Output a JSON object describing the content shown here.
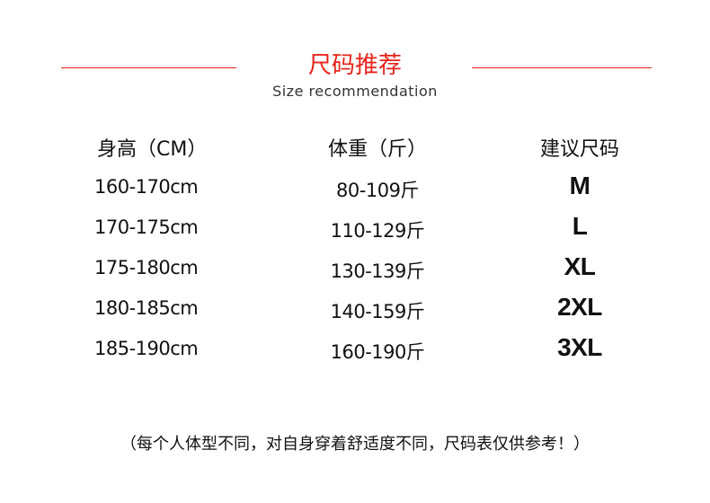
{
  "title": "尺码推荐",
  "subtitle": "Size recommendation",
  "accent_color": "#e8231b",
  "headers": [
    "身高（CM）",
    "体重（斤）",
    "建议尺码"
  ],
  "rows": [
    {
      "height": "160-170cm",
      "weight": "80-109斤",
      "size": "M"
    },
    {
      "height": "170-175cm",
      "weight": "110-129斤",
      "size": "L"
    },
    {
      "height": "175-180cm",
      "weight": "130-139斤",
      "size": "XL"
    },
    {
      "height": "180-185cm",
      "weight": "140-159斤",
      "size": "2XL"
    },
    {
      "height": "185-190cm",
      "weight": "160-190斤",
      "size": "3XL"
    }
  ],
  "note": "（每个人体型不同，对自身穿着舒适度不同，尺码表仅供参考！）"
}
